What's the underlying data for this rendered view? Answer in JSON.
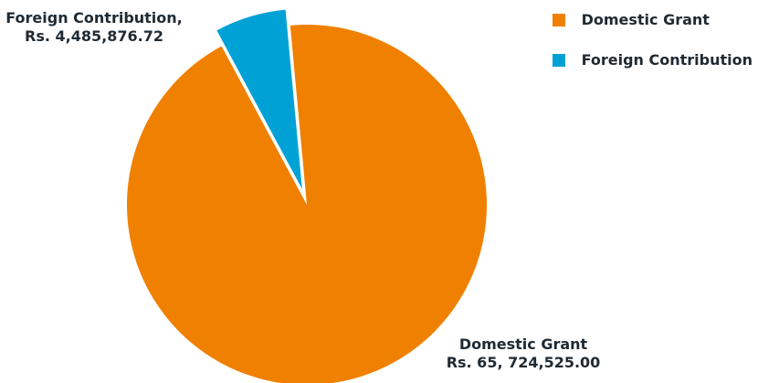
{
  "chart_data": {
    "type": "pie",
    "title": "",
    "slices": [
      {
        "name": "Domestic Grant",
        "value": 65724525.0,
        "label_lines": [
          "Domestic Grant",
          "Rs. 65, 724,525.00"
        ],
        "color": "#f08000"
      },
      {
        "name": "Foreign Contribution",
        "value": 4485876.72,
        "label_lines": [
          "Foreign Contribution,",
          "Rs. 4,485,876.72"
        ],
        "color": "#00a2d6"
      }
    ],
    "legend": {
      "placement": "top-right",
      "entries": [
        "Domestic Grant",
        "Foreign Contribution"
      ]
    },
    "exploded_slice": "Foreign Contribution"
  }
}
